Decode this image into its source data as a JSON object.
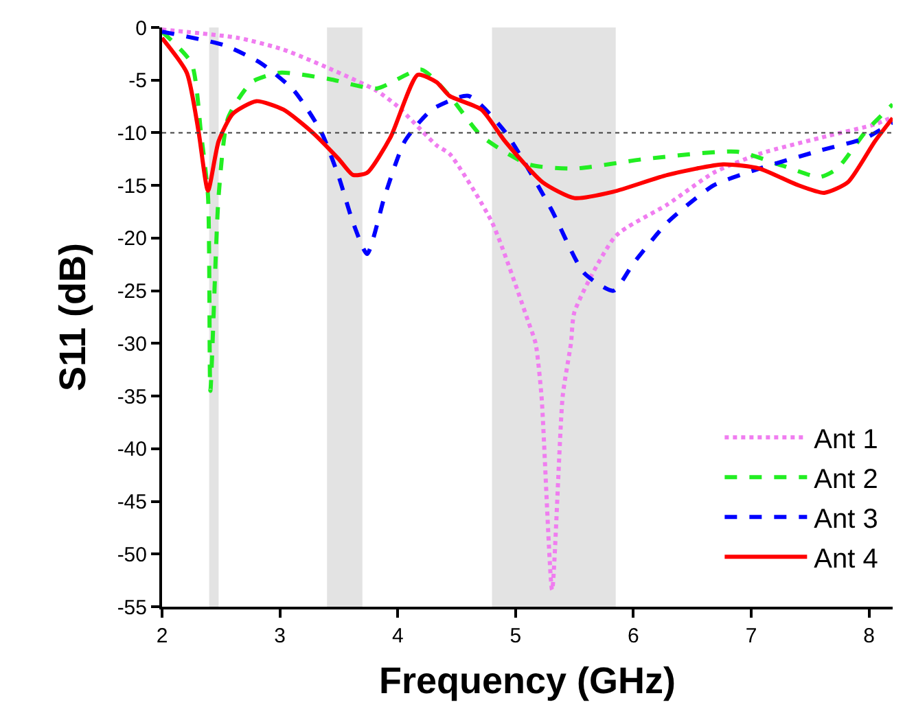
{
  "chart_data": {
    "type": "line",
    "xlabel": "Frequency (GHz)",
    "ylabel": "S11 (dB)",
    "xlim": [
      2,
      8.2
    ],
    "xticks": [
      2,
      3,
      4,
      5,
      6,
      7,
      8
    ],
    "ylim": [
      -55,
      0
    ],
    "yticks": [
      0,
      -5,
      -10,
      -15,
      -20,
      -25,
      -30,
      -35,
      -40,
      -45,
      -50,
      -55
    ],
    "grid": false,
    "legend": "bottom right",
    "marker": "none",
    "ref_lines": [
      {
        "axis": "y",
        "value": -10,
        "color": "#404040",
        "line_style": "dotted"
      }
    ],
    "bands": [
      {
        "axis": "x",
        "from": 2.4,
        "to": 2.48,
        "color": "#e3e3e3"
      },
      {
        "axis": "x",
        "from": 3.4,
        "to": 3.7,
        "color": "#e3e3e3"
      },
      {
        "axis": "x",
        "from": 4.8,
        "to": 5.85,
        "color": "#e3e3e3"
      }
    ],
    "series": [
      {
        "name": "Ant 1",
        "color": "#f07df0",
        "line_style": "dotted",
        "x": [
          2,
          2.65,
          3.03,
          3.42,
          3.82,
          4.0,
          4.33,
          4.44,
          4.8,
          5.11,
          5.17,
          5.22,
          5.31,
          5.4,
          5.47,
          5.5,
          5.85,
          6.29,
          6.68,
          7.07,
          7.65,
          8.05,
          8.2
        ],
        "values": [
          -0.2,
          -1,
          -2.1,
          -3.9,
          -6,
          -7.5,
          -11.2,
          -12,
          -18.5,
          -28,
          -30,
          -35,
          -53.4,
          -35,
          -30,
          -27,
          -19.8,
          -16.8,
          -13.8,
          -12,
          -10.3,
          -9.2,
          -8.5
        ]
      },
      {
        "name": "Ant 2",
        "color": "#22ee22",
        "line_style": "dashed",
        "x": [
          2,
          2.25,
          2.33,
          2.39,
          2.41,
          2.48,
          2.56,
          2.76,
          3.0,
          3.42,
          3.82,
          4.2,
          4.44,
          4.71,
          5.11,
          5.5,
          6.09,
          6.88,
          7.26,
          7.58,
          7.73,
          7.97,
          8.2
        ],
        "values": [
          -0.4,
          -3.4,
          -10,
          -16,
          -34.5,
          -16,
          -8.6,
          -5.2,
          -4.3,
          -4.9,
          -5.8,
          -4,
          -6.5,
          -10.3,
          -13,
          -13.4,
          -12.5,
          -11.8,
          -13.1,
          -14.2,
          -13.4,
          -9.9,
          -7.3
        ]
      },
      {
        "name": "Ant 3",
        "color": "#0000ff",
        "line_style": "dashed",
        "x": [
          2,
          2.53,
          2.84,
          3.12,
          3.35,
          3.5,
          3.62,
          3.74,
          3.89,
          4.06,
          4.29,
          4.6,
          4.91,
          5.3,
          5.58,
          5.83,
          6.0,
          6.29,
          6.68,
          7.07,
          7.58,
          7.97,
          8.2
        ],
        "values": [
          -0.4,
          -1.7,
          -3.4,
          -6,
          -9.9,
          -14.2,
          -18.5,
          -21.5,
          -16,
          -10.8,
          -7.8,
          -6.5,
          -9.9,
          -17.2,
          -23.3,
          -25,
          -22.4,
          -18.5,
          -15,
          -13.4,
          -11.7,
          -10.5,
          -9
        ]
      },
      {
        "name": "Ant 4",
        "color": "#ff0000",
        "line_style": "solid",
        "x": [
          2,
          2.21,
          2.31,
          2.39,
          2.48,
          2.6,
          2.8,
          3.03,
          3.27,
          3.5,
          3.62,
          3.74,
          3.94,
          4.17,
          4.33,
          4.44,
          4.71,
          4.91,
          5.23,
          5.5,
          5.83,
          6.29,
          6.76,
          7.07,
          7.38,
          7.62,
          7.82,
          8.05,
          8.2
        ],
        "values": [
          -1,
          -4.3,
          -9.9,
          -15.5,
          -10.8,
          -8.2,
          -7,
          -7.8,
          -9.9,
          -12.5,
          -14,
          -13.8,
          -10.4,
          -4.5,
          -5.2,
          -6.5,
          -7.8,
          -10.8,
          -14.7,
          -16.2,
          -15.6,
          -14,
          -13,
          -13.4,
          -14.9,
          -15.7,
          -14.7,
          -10.8,
          -8.6
        ]
      }
    ]
  }
}
